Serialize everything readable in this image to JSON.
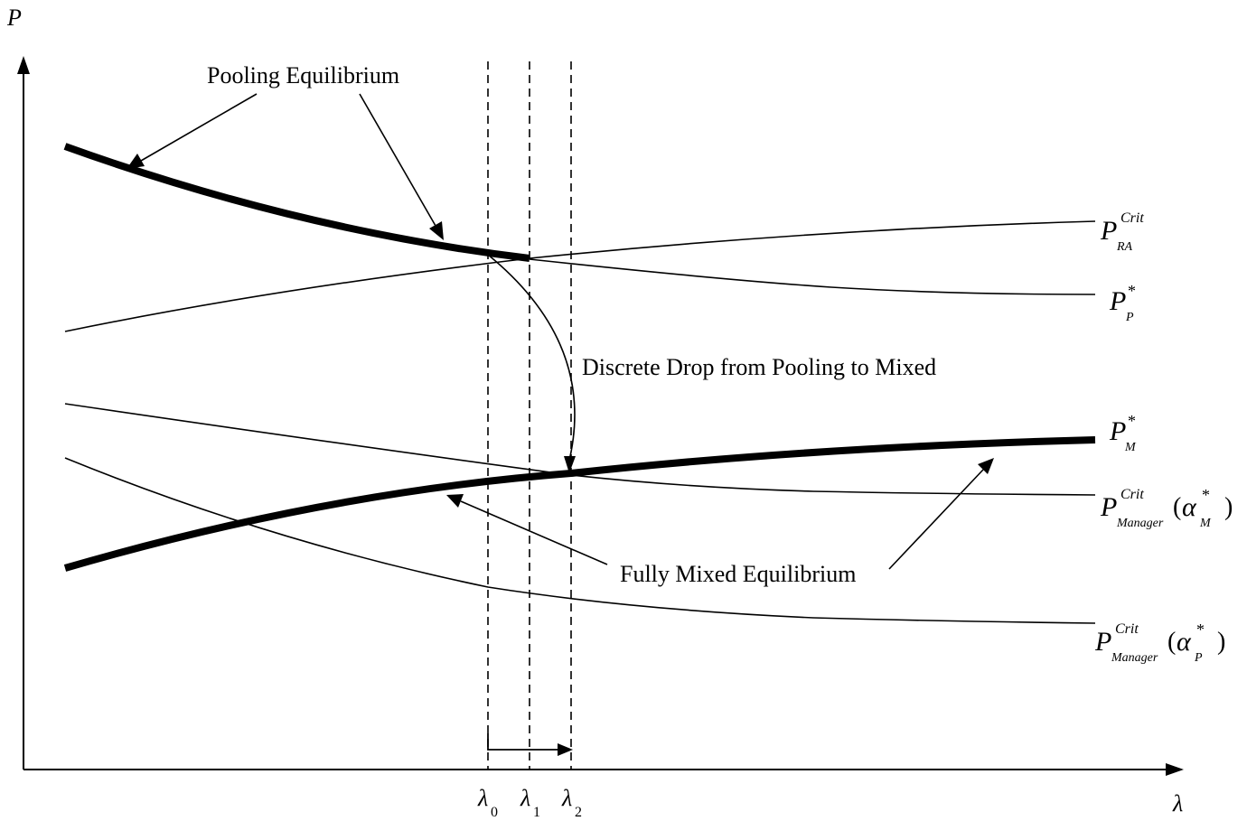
{
  "axes": {
    "y_label": "P",
    "x_label": "λ"
  },
  "x_ticks": [
    {
      "base": "λ",
      "sub": "0"
    },
    {
      "base": "λ",
      "sub": "1"
    },
    {
      "base": "λ",
      "sub": "2"
    }
  ],
  "annotations": {
    "pooling": "Pooling Equilibrium",
    "mixed": "Fully Mixed Equilibrium",
    "drop": "Discrete Drop from Pooling to Mixed"
  },
  "curve_labels": {
    "ra_crit": {
      "base": "P",
      "sup": "Crit",
      "sub": "RA"
    },
    "p_star": {
      "base": "P",
      "sup": "*",
      "sub": "P"
    },
    "m_star": {
      "base": "P",
      "sup": "*",
      "sub": "M"
    },
    "mgr_crit_m": {
      "base": "P",
      "sup": "Crit",
      "sub": "Manager",
      "open": "(",
      "alpha": "α",
      "asup": "*",
      "asub": "M",
      "close": ")"
    },
    "mgr_crit_p": {
      "base": "P",
      "sup": "Crit",
      "sub": "Manager",
      "open": "(",
      "alpha": "α",
      "asup": "*",
      "asub": "P",
      "close": ")"
    }
  }
}
